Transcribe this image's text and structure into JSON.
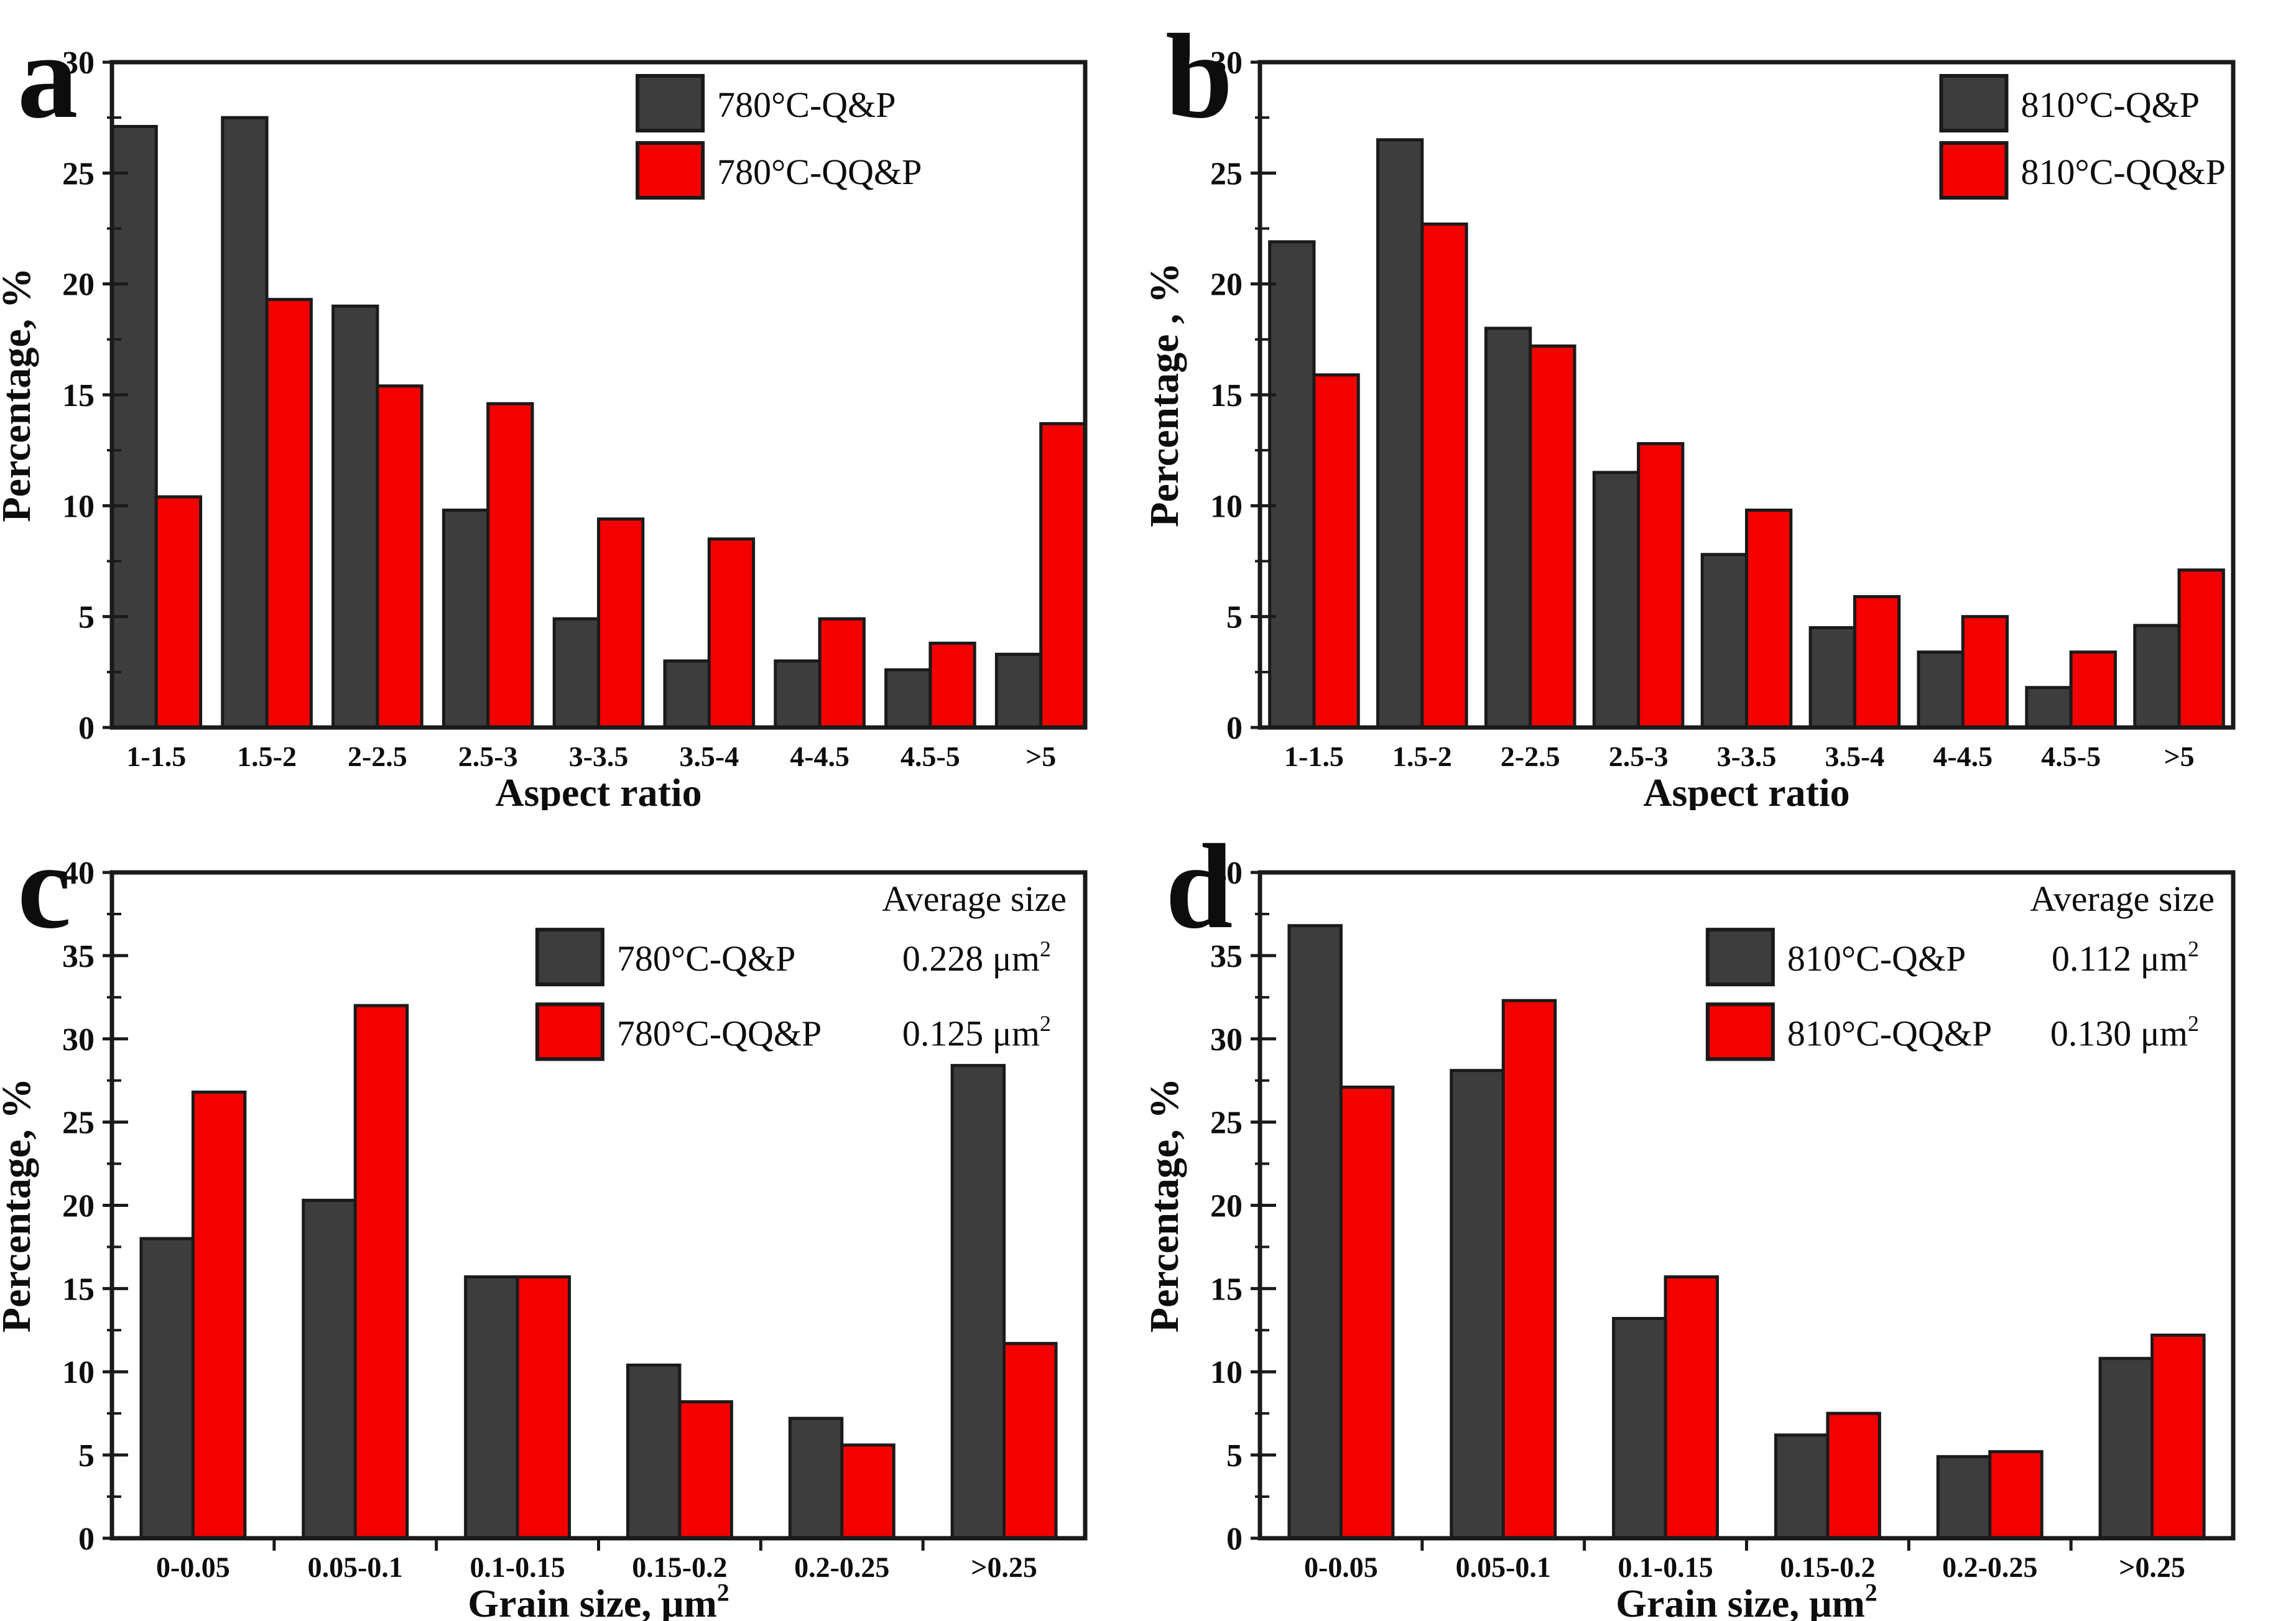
{
  "figure": {
    "background": "#ffffff",
    "text_color": "#0d0d0d",
    "axis_color": "#1a1a1a"
  },
  "chart_data": [
    {
      "panel_label": "a",
      "type": "bar",
      "xlabel": "Aspect ratio",
      "ylabel": "Percentage, %",
      "ylim": [
        0,
        30
      ],
      "ytick_step": 5,
      "grid": "off",
      "categories": [
        "1-1.5",
        "1.5-2",
        "2-2.5",
        "2.5-3",
        "3-3.5",
        "3.5-4",
        "4-4.5",
        "4.5-5",
        ">5"
      ],
      "series": [
        {
          "name": "780°C-Q&P",
          "color": "#3d3d3d",
          "values": [
            27.1,
            27.5,
            19.0,
            9.8,
            4.9,
            3.0,
            3.0,
            2.6,
            3.3
          ]
        },
        {
          "name": "780°C-QQ&P",
          "color": "#f30000",
          "values": [
            10.4,
            19.3,
            15.4,
            14.6,
            9.4,
            8.5,
            4.9,
            3.8,
            13.7
          ]
        }
      ],
      "legend": {
        "position": "top-right-inside"
      },
      "layout": {
        "flush_ends": true,
        "x_boundary_ticks": false,
        "legend_x_frac": 0.54,
        "bar_frac": 0.41
      }
    },
    {
      "panel_label": "b",
      "type": "bar",
      "xlabel": "Aspect ratio",
      "ylabel": "Percentage , %",
      "ylim": [
        0,
        30
      ],
      "ytick_step": 5,
      "grid": "off",
      "categories": [
        "1-1.5",
        "1.5-2",
        "2-2.5",
        "2.5-3",
        "3-3.5",
        "3.5-4",
        "4-4.5",
        "4.5-5",
        ">5"
      ],
      "series": [
        {
          "name": "810°C-Q&P",
          "color": "#3d3d3d",
          "values": [
            21.9,
            26.5,
            18.0,
            11.5,
            7.8,
            4.5,
            3.4,
            1.8,
            4.6
          ]
        },
        {
          "name": "810°C-QQ&P",
          "color": "#f30000",
          "values": [
            15.9,
            22.7,
            17.2,
            12.8,
            9.8,
            5.9,
            5.0,
            3.4,
            7.1
          ]
        }
      ],
      "legend": {
        "position": "top-right-inside"
      },
      "layout": {
        "flush_ends": false,
        "x_boundary_ticks": false,
        "legend_x_frac": 0.7,
        "bar_frac": 0.41
      }
    },
    {
      "panel_label": "c",
      "type": "bar",
      "xlabel": "Grain size, μm²",
      "ylabel": "Percentage, %",
      "ylim": [
        0,
        40
      ],
      "ytick_step": 5,
      "grid": "off",
      "categories": [
        "0-0.05",
        "0.05-0.1",
        "0.1-0.15",
        "0.15-0.2",
        "0.2-0.25",
        ">0.25"
      ],
      "series": [
        {
          "name": "780°C-Q&P",
          "color": "#3d3d3d",
          "values": [
            18.0,
            20.3,
            15.7,
            10.4,
            7.2,
            28.4
          ]
        },
        {
          "name": "780°C-QQ&P",
          "color": "#f30000",
          "values": [
            26.8,
            32.0,
            15.7,
            8.2,
            5.6,
            11.7
          ]
        }
      ],
      "legend": {
        "position": "top-center-inside"
      },
      "annotation": {
        "header": "Average size",
        "values": [
          "0.228 μm²",
          "0.125 μm²"
        ]
      },
      "layout": {
        "flush_ends": false,
        "x_boundary_ticks": true,
        "legend_x_frac": 0.437,
        "bar_frac": 0.32
      }
    },
    {
      "panel_label": "d",
      "type": "bar",
      "xlabel": "Grain size, μm²",
      "ylabel": "Percentage, %",
      "ylim": [
        0,
        40
      ],
      "ytick_step": 5,
      "grid": "off",
      "categories": [
        "0-0.05",
        "0.05-0.1",
        "0.1-0.15",
        "0.15-0.2",
        "0.2-0.25",
        ">0.25"
      ],
      "series": [
        {
          "name": "810°C-Q&P",
          "color": "#3d3d3d",
          "values": [
            36.8,
            28.1,
            13.2,
            6.2,
            4.9,
            10.8
          ]
        },
        {
          "name": "810°C-QQ&P",
          "color": "#f30000",
          "values": [
            27.1,
            32.3,
            15.7,
            7.5,
            5.2,
            12.2
          ]
        }
      ],
      "legend": {
        "position": "top-center-inside"
      },
      "annotation": {
        "header": "Average size",
        "values": [
          "0.112 μm²",
          "0.130 μm²"
        ]
      },
      "layout": {
        "flush_ends": false,
        "x_boundary_ticks": true,
        "legend_x_frac": 0.46,
        "bar_frac": 0.32
      }
    }
  ]
}
